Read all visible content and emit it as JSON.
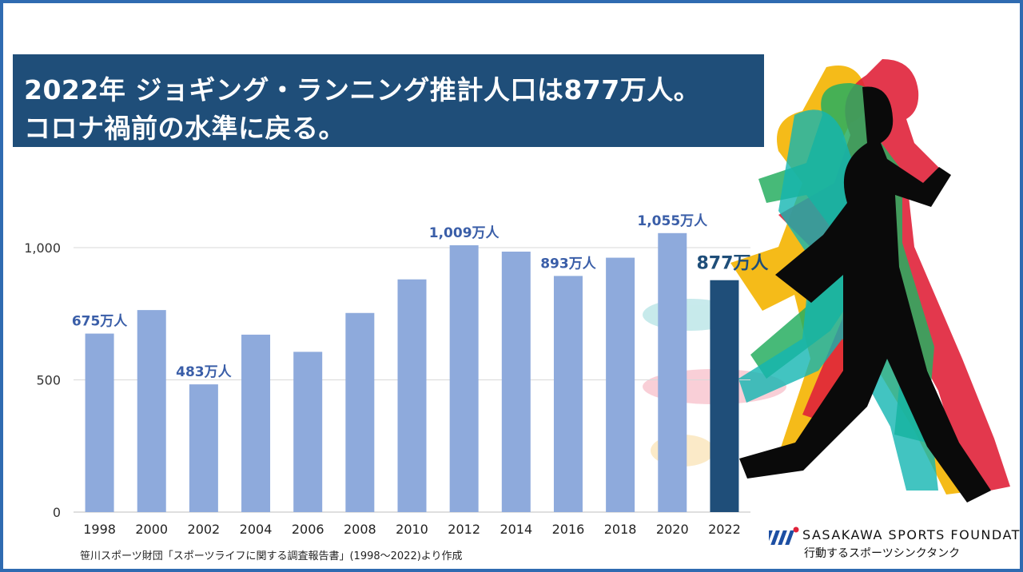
{
  "title": {
    "line1": "2022年 ジョギング・ランニング推計人口は877万人。",
    "line2": "コロナ禍前の水準に戻る。"
  },
  "chart_data": {
    "type": "bar",
    "categories": [
      "1998",
      "2000",
      "2002",
      "2004",
      "2006",
      "2008",
      "2010",
      "2012",
      "2014",
      "2016",
      "2018",
      "2020",
      "2022"
    ],
    "values": [
      675,
      764,
      483,
      671,
      606,
      753,
      880,
      1009,
      985,
      893,
      962,
      1055,
      877
    ],
    "data_labels": [
      {
        "index": 0,
        "text": "675万人"
      },
      {
        "index": 2,
        "text": "483万人"
      },
      {
        "index": 7,
        "text": "1,009万人"
      },
      {
        "index": 9,
        "text": "893万人"
      },
      {
        "index": 11,
        "text": "1,055万人"
      },
      {
        "index": 12,
        "text": "877万人"
      }
    ],
    "highlight_index": 12,
    "yticks": [
      0,
      500,
      1000
    ],
    "ytick_labels": [
      "0",
      "500",
      "1,000"
    ],
    "ylim": [
      0,
      1100
    ],
    "grid": true,
    "colors": {
      "bar": "#8eaadc",
      "highlight": "#1f4e79",
      "label": "#3a5ea8"
    }
  },
  "source_note": "笹川スポーツ財団「スポーツライフに関する調査報告書」(1998〜2022)より作成",
  "logo": {
    "name": "SASAKAWA SPORTS FOUNDATION",
    "tagline": "行動するスポーツシンクタンク",
    "icon": "ssf-logo-icon"
  },
  "decoration": {
    "icon": "runners-silhouette-icon"
  }
}
